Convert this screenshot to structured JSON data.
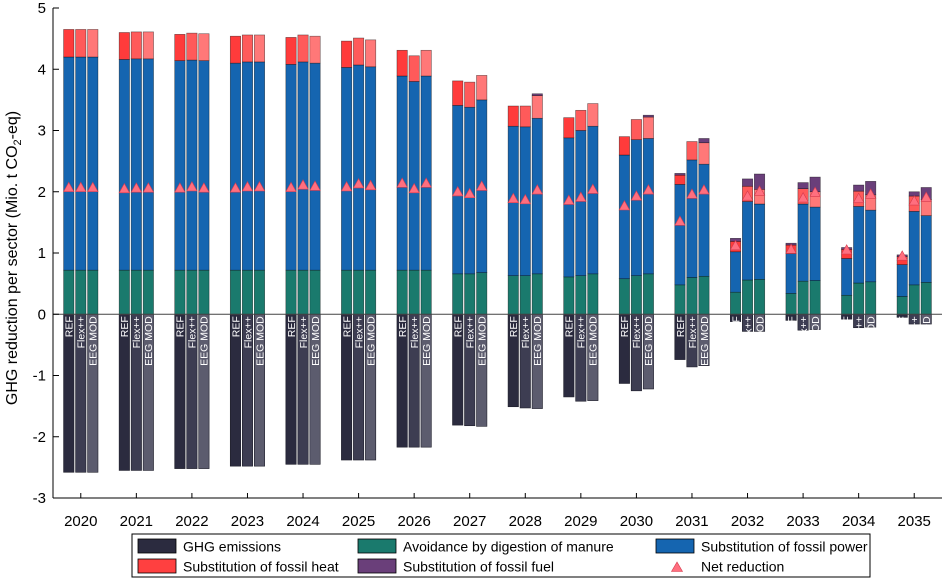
{
  "chart_data": {
    "type": "bar",
    "subtype": "stacked-grouped",
    "title": "",
    "xlabel": "",
    "ylabel_parts": [
      "GHG reduction per sector (Mio. t CO",
      "2",
      "-eq)"
    ],
    "ylim": [
      -3,
      5
    ],
    "yticks": [
      "-3",
      "-2",
      "-1",
      "0",
      "1",
      "2",
      "3",
      "4",
      "5"
    ],
    "categories": [
      "2020",
      "2021",
      "2022",
      "2023",
      "2024",
      "2025",
      "2026",
      "2027",
      "2028",
      "2029",
      "2030",
      "2031",
      "2032",
      "2033",
      "2034",
      "2035"
    ],
    "scenarios": [
      "REF",
      "Flex++",
      "EEG MOD"
    ],
    "colors": {
      "ghg": "#2b2b3f",
      "ghg_shades": [
        "#2b2b3f",
        "#3d3d52",
        "#5c5c6e"
      ],
      "manure": "#1a7a6d",
      "power": "#1565b0",
      "heat": "#ff4040",
      "heat_shades": [
        "#ff3b3b",
        "#ff5a5a",
        "#ff7878"
      ],
      "fuel": "#6a3f7a",
      "net": "#ff6f7f",
      "zero_line": "#444444"
    },
    "series": [
      {
        "name": "GHG emissions",
        "key": "ghg",
        "values": [
          [
            -2.58,
            -2.58,
            -2.58
          ],
          [
            -2.55,
            -2.55,
            -2.55
          ],
          [
            -2.52,
            -2.52,
            -2.52
          ],
          [
            -2.48,
            -2.48,
            -2.48
          ],
          [
            -2.45,
            -2.45,
            -2.45
          ],
          [
            -2.38,
            -2.38,
            -2.38
          ],
          [
            -2.17,
            -2.17,
            -2.17
          ],
          [
            -1.81,
            -1.82,
            -1.83
          ],
          [
            -1.51,
            -1.53,
            -1.54
          ],
          [
            -1.35,
            -1.42,
            -1.41
          ],
          [
            -1.13,
            -1.25,
            -1.22
          ],
          [
            -0.74,
            -0.86,
            -0.84
          ],
          [
            -0.12,
            -0.28,
            -0.28
          ],
          [
            -0.1,
            -0.26,
            -0.25
          ],
          [
            -0.08,
            -0.22,
            -0.21
          ],
          [
            -0.05,
            -0.16,
            -0.16
          ]
        ]
      },
      {
        "name": "Avoidance by digestion of manure",
        "key": "manure",
        "values": [
          [
            0.72,
            0.72,
            0.72
          ],
          [
            0.72,
            0.72,
            0.72
          ],
          [
            0.72,
            0.72,
            0.72
          ],
          [
            0.72,
            0.72,
            0.72
          ],
          [
            0.72,
            0.72,
            0.72
          ],
          [
            0.72,
            0.72,
            0.72
          ],
          [
            0.72,
            0.72,
            0.72
          ],
          [
            0.66,
            0.66,
            0.68
          ],
          [
            0.63,
            0.63,
            0.66
          ],
          [
            0.61,
            0.63,
            0.66
          ],
          [
            0.58,
            0.63,
            0.66
          ],
          [
            0.48,
            0.6,
            0.62
          ],
          [
            0.36,
            0.56,
            0.57
          ],
          [
            0.34,
            0.54,
            0.55
          ],
          [
            0.31,
            0.51,
            0.53
          ],
          [
            0.29,
            0.48,
            0.52
          ]
        ]
      },
      {
        "name": "Substitution of fossil power",
        "key": "power",
        "values": [
          [
            3.48,
            3.48,
            3.48
          ],
          [
            3.44,
            3.45,
            3.45
          ],
          [
            3.42,
            3.43,
            3.42
          ],
          [
            3.38,
            3.4,
            3.4
          ],
          [
            3.36,
            3.4,
            3.38
          ],
          [
            3.31,
            3.35,
            3.32
          ],
          [
            3.17,
            3.08,
            3.17
          ],
          [
            2.75,
            2.72,
            2.82
          ],
          [
            2.44,
            2.43,
            2.54
          ],
          [
            2.27,
            2.37,
            2.41
          ],
          [
            2.02,
            2.22,
            2.21
          ],
          [
            1.64,
            1.92,
            1.83
          ],
          [
            0.66,
            1.28,
            1.23
          ],
          [
            0.65,
            1.26,
            1.2
          ],
          [
            0.6,
            1.25,
            1.17
          ],
          [
            0.52,
            1.2,
            1.09
          ]
        ]
      },
      {
        "name": "Substitution of fossil heat",
        "key": "heat",
        "values": [
          [
            0.45,
            0.45,
            0.45
          ],
          [
            0.44,
            0.44,
            0.44
          ],
          [
            0.43,
            0.44,
            0.44
          ],
          [
            0.44,
            0.44,
            0.44
          ],
          [
            0.44,
            0.44,
            0.44
          ],
          [
            0.43,
            0.44,
            0.44
          ],
          [
            0.42,
            0.42,
            0.42
          ],
          [
            0.4,
            0.41,
            0.4
          ],
          [
            0.33,
            0.34,
            0.37
          ],
          [
            0.33,
            0.33,
            0.37
          ],
          [
            0.3,
            0.33,
            0.35
          ],
          [
            0.15,
            0.3,
            0.35
          ],
          [
            0.17,
            0.25,
            0.24
          ],
          [
            0.14,
            0.25,
            0.25
          ],
          [
            0.15,
            0.25,
            0.25
          ],
          [
            0.13,
            0.25,
            0.26
          ]
        ]
      },
      {
        "name": "Substitution of fossil fuel",
        "key": "fuel",
        "values": [
          [
            0,
            0,
            0
          ],
          [
            0,
            0,
            0
          ],
          [
            0,
            0,
            0
          ],
          [
            0,
            0,
            0
          ],
          [
            0,
            0,
            0
          ],
          [
            0,
            0,
            0
          ],
          [
            0,
            0,
            0
          ],
          [
            0,
            0,
            0
          ],
          [
            0,
            0,
            0.03
          ],
          [
            0,
            0,
            0
          ],
          [
            0,
            0,
            0.03
          ],
          [
            0.03,
            0,
            0.07
          ],
          [
            0.05,
            0.12,
            0.25
          ],
          [
            0.03,
            0.1,
            0.24
          ],
          [
            0.03,
            0.1,
            0.22
          ],
          [
            0.03,
            0.07,
            0.2
          ]
        ]
      },
      {
        "name": "Net reduction",
        "key": "net",
        "marker": "triangle",
        "values": [
          [
            2.07,
            2.07,
            2.07
          ],
          [
            2.05,
            2.06,
            2.06
          ],
          [
            2.06,
            2.08,
            2.06
          ],
          [
            2.06,
            2.08,
            2.08
          ],
          [
            2.07,
            2.11,
            2.09
          ],
          [
            2.08,
            2.13,
            2.1
          ],
          [
            2.14,
            2.05,
            2.14
          ],
          [
            2.0,
            1.97,
            2.09
          ],
          [
            1.89,
            1.87,
            2.03
          ],
          [
            1.86,
            1.91,
            2.04
          ],
          [
            1.77,
            1.93,
            2.03
          ],
          [
            1.52,
            1.96,
            2.03
          ],
          [
            1.12,
            1.93,
            2.01
          ],
          [
            1.06,
            1.9,
            1.99
          ],
          [
            1.05,
            1.89,
            1.96
          ],
          [
            0.95,
            1.85,
            1.91
          ]
        ]
      }
    ],
    "legend": {
      "placement": "bottom",
      "entries": [
        {
          "label": "GHG emissions",
          "key": "ghg"
        },
        {
          "label": "Avoidance by digestion of manure",
          "key": "manure"
        },
        {
          "label": "Substitution of fossil power",
          "key": "power"
        },
        {
          "label": "Substitution of fossil heat",
          "key": "heat"
        },
        {
          "label": "Substitution of fossil fuel",
          "key": "fuel"
        },
        {
          "label": "Net reduction",
          "key": "net"
        }
      ]
    }
  }
}
